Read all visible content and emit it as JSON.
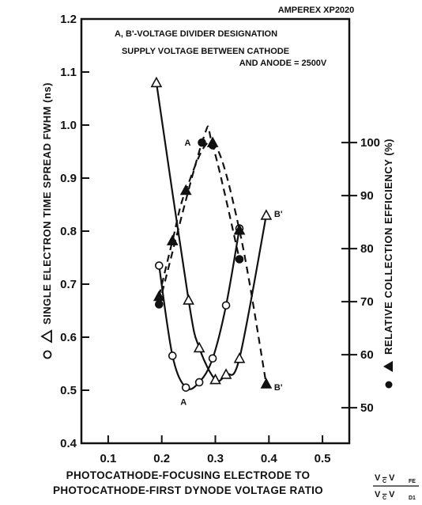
{
  "header": {
    "model": "AMPEREX XP2020",
    "note1": "A, B'-VOLTAGE DIVIDER DESIGNATION",
    "note2": "SUPPLY VOLTAGE BETWEEN CATHODE",
    "note3": "AND ANODE = 2500V"
  },
  "chart_data": {
    "type": "line",
    "title": "",
    "xlabel_line1": "PHOTOCATHODE-FOCUSING ELECTRODE TO",
    "xlabel_line2": "PHOTOCATHODE-FIRST DYNODE VOLTAGE RATIO",
    "xlabel_fraction_numerator": "V − V",
    "xlabel_fraction_numerator_sub_c": "C",
    "xlabel_fraction_numerator_sub_fe": "FE",
    "xlabel_fraction_denominator": "V − V",
    "xlabel_fraction_denominator_sub_c": "C",
    "xlabel_fraction_denominator_sub_d1": "D1",
    "ylabel_left": "SINGLE ELECTRON TIME SPREAD FWHM (ns)",
    "ylabel_right": "RELATIVE COLLECTION EFFICIENCY (%)",
    "x_ticks": [
      "0.1",
      "0.2",
      "0.3",
      "0.4",
      "0.5"
    ],
    "y_left_ticks": [
      "0.4",
      "0.5",
      "0.6",
      "0.7",
      "0.8",
      "0.9",
      "1.0",
      "1.1",
      "1.2"
    ],
    "y_right_ticks": [
      "50",
      "60",
      "70",
      "80",
      "90",
      "100"
    ],
    "xlim": [
      0.05,
      0.55
    ],
    "ylim_left": [
      0.4,
      1.2
    ],
    "ylim_right": [
      43.3,
      123.3
    ],
    "grid": false,
    "series": [
      {
        "label_text": "A",
        "axis": "left",
        "style": "solid",
        "marker": "open-circle",
        "x": [
          0.195,
          0.22,
          0.245,
          0.27,
          0.295,
          0.32,
          0.345
        ],
        "y": [
          0.735,
          0.565,
          0.505,
          0.515,
          0.56,
          0.66,
          0.805
        ]
      },
      {
        "label_text": "B'",
        "axis": "left",
        "style": "solid",
        "marker": "open-triangle",
        "x": [
          0.19,
          0.25,
          0.27,
          0.3,
          0.32,
          0.345,
          0.395
        ],
        "y": [
          1.08,
          0.67,
          0.58,
          0.52,
          0.53,
          0.56,
          0.83
        ]
      },
      {
        "label_text": "A",
        "axis": "right",
        "style": "dashed",
        "marker": "filled-circle",
        "x": [
          0.195,
          0.275,
          0.295,
          0.345
        ],
        "y": [
          69.5,
          100,
          99.5,
          78
        ]
      },
      {
        "label_text": "B'",
        "axis": "right",
        "style": "dashed",
        "marker": "filled-triangle",
        "x": [
          0.195,
          0.22,
          0.245,
          0.295,
          0.345,
          0.395
        ],
        "y": [
          71,
          81.5,
          91,
          100,
          83.5,
          54.5
        ]
      }
    ]
  }
}
